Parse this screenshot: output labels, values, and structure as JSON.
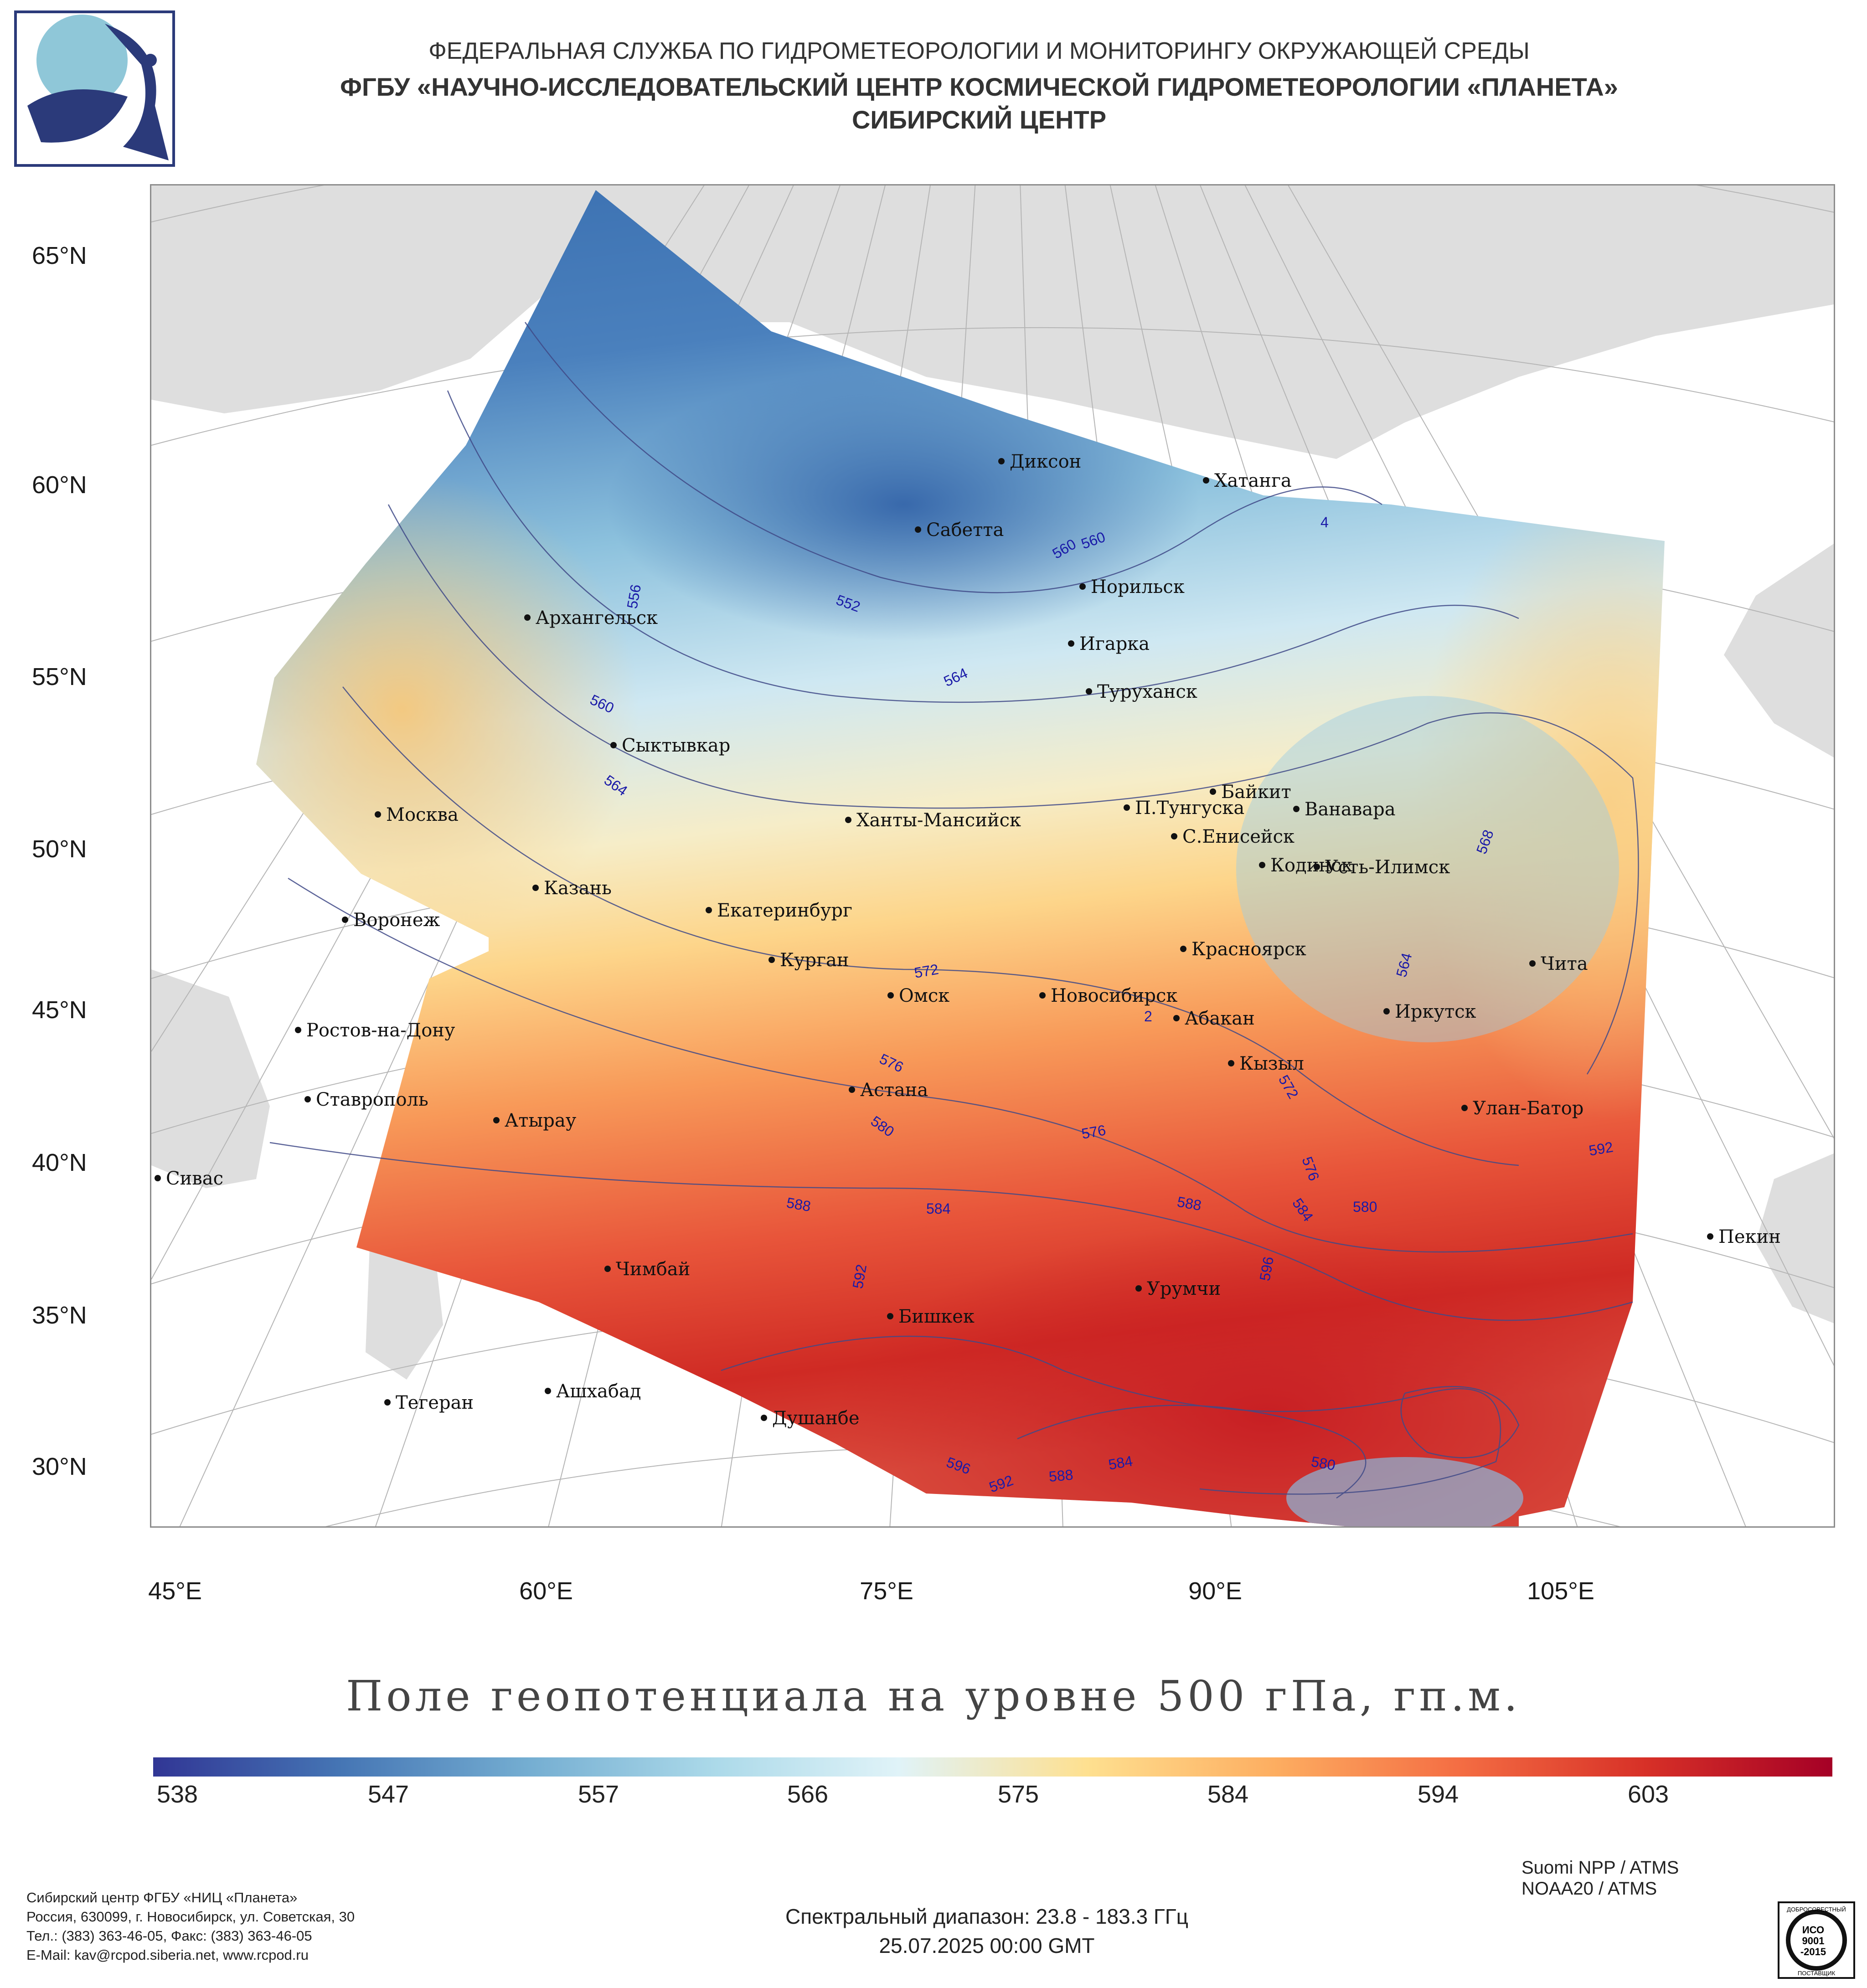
{
  "header": {
    "agency": "ФЕДЕРАЛЬНАЯ СЛУЖБА ПО ГИДРОМЕТЕОРОЛОГИИ И МОНИТОРИНГУ ОКРУЖАЮЩЕЙ СРЕДЫ",
    "institute": "ФГБУ «НАУЧНО-ИССЛЕДОВАТЕЛЬСКИЙ ЦЕНТР КОСМИЧЕСКОЙ ГИДРОМЕТЕОРОЛОГИИ «ПЛАНЕТА»",
    "center": "СИБИРСКИЙ ЦЕНТР"
  },
  "map": {
    "title": "Поле геопотенциала на уровне 500 гПа, гп.м.",
    "lat_labels": [
      "65°N",
      "60°N",
      "55°N",
      "50°N",
      "45°N",
      "40°N",
      "35°N",
      "30°N"
    ],
    "lon_labels": [
      "45°E",
      "60°E",
      "75°E",
      "90°E",
      "105°E"
    ],
    "cities": [
      {
        "name": "Диксон"
      },
      {
        "name": "Хатанга"
      },
      {
        "name": "Сабетта"
      },
      {
        "name": "Норильск"
      },
      {
        "name": "Архангельск"
      },
      {
        "name": "Игарка"
      },
      {
        "name": "Туруханск"
      },
      {
        "name": "Сыктывкар"
      },
      {
        "name": "Байкит"
      },
      {
        "name": "П.Тунгуска"
      },
      {
        "name": "Ванавара"
      },
      {
        "name": "Москва"
      },
      {
        "name": "Ханты-Мансийск"
      },
      {
        "name": "С.Енисейск"
      },
      {
        "name": "Кодинск"
      },
      {
        "name": "Усть-Илимск"
      },
      {
        "name": "Казань"
      },
      {
        "name": "Екатеринбург"
      },
      {
        "name": "Воронеж"
      },
      {
        "name": "Курган"
      },
      {
        "name": "Красноярск"
      },
      {
        "name": "Чита"
      },
      {
        "name": "Омск"
      },
      {
        "name": "Новосибирск"
      },
      {
        "name": "Абакан"
      },
      {
        "name": "Иркутск"
      },
      {
        "name": "Ростов-на-Дону"
      },
      {
        "name": "Кызыл"
      },
      {
        "name": "Астана"
      },
      {
        "name": "Ставрополь"
      },
      {
        "name": "Улан-Батор"
      },
      {
        "name": "Атырау"
      },
      {
        "name": "Сивас"
      },
      {
        "name": "Пекин"
      },
      {
        "name": "Чимбай"
      },
      {
        "name": "Урумчи"
      },
      {
        "name": "Бишкек"
      },
      {
        "name": "Ашхабад"
      },
      {
        "name": "Тегеран"
      },
      {
        "name": "Душанбе"
      }
    ],
    "contour_labels": [
      "552",
      "556",
      "560",
      "560",
      "560",
      "564",
      "564",
      "564",
      "568",
      "572",
      "572",
      "576",
      "576",
      "576",
      "580",
      "580",
      "580",
      "584",
      "584",
      "584",
      "588",
      "588",
      "588",
      "592",
      "592",
      "592",
      "596",
      "596",
      "2",
      "4"
    ]
  },
  "colorbar": {
    "ticks": [
      "538",
      "547",
      "557",
      "566",
      "575",
      "584",
      "594",
      "603"
    ],
    "colors": [
      "#313695",
      "#4575b4",
      "#74add1",
      "#abd9e9",
      "#e0f3f8",
      "#fee090",
      "#fdae61",
      "#f46d43",
      "#d73027",
      "#a50026"
    ]
  },
  "footer": {
    "satellites": [
      "Suomi NPP / ATMS",
      "NOAA20 / ATMS"
    ],
    "spectral_range": "Спектральный диапазон: 23.8 - 183.3 ГГц",
    "datetime": "25.07.2025 00:00 GMT",
    "address_lines": [
      "Сибирский центр ФГБУ «НИЦ «Планета»",
      "Россия, 630099, г. Новосибирск, ул. Советская, 30",
      "Тел.: (383) 363-46-05, Факс: (383) 363-46-05",
      "E-Mail: kav@rcpod.siberia.net, www.rcpod.ru"
    ],
    "iso_badge": {
      "top": "ДОБРОСОВЕСТНЫЙ",
      "main": [
        "ИСО",
        "9001",
        "-2015"
      ],
      "bottom": "ПОСТАВЩИК"
    }
  }
}
